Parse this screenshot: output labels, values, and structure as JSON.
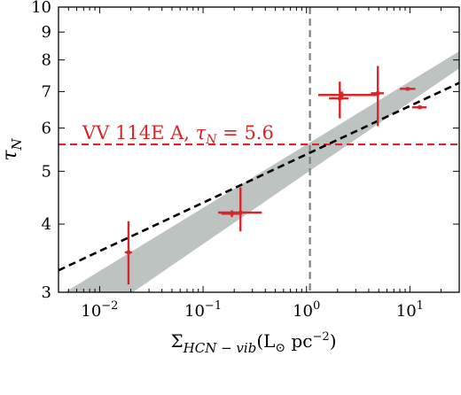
{
  "chart_data": {
    "type": "scatter",
    "xscale": "log",
    "yscale": "log",
    "xlim": [
      0.004,
      30
    ],
    "ylim": [
      3,
      10
    ],
    "x_ticks": [
      {
        "value": 0.01,
        "base": "10",
        "exp": "−2"
      },
      {
        "value": 0.1,
        "base": "10",
        "exp": "−1"
      },
      {
        "value": 1,
        "base": "10",
        "exp": "0"
      },
      {
        "value": 10,
        "base": "10",
        "exp": "1"
      }
    ],
    "y_ticks": [
      {
        "value": 3,
        "label": "3"
      },
      {
        "value": 4,
        "label": "4"
      },
      {
        "value": 5,
        "label": "5"
      },
      {
        "value": 6,
        "label": "6"
      },
      {
        "value": 7,
        "label": "7"
      },
      {
        "value": 8,
        "label": "8"
      },
      {
        "value": 9,
        "label": "9"
      },
      {
        "value": 10,
        "label": "10"
      }
    ],
    "xlabel": {
      "sigma": "Σ",
      "sub": "HCN − vib",
      "paren_open": "(L",
      "sun": "⊙",
      "unit": " pc",
      "exp": "−2",
      "paren_close": ")"
    },
    "ylabel": {
      "tau": "τ",
      "sub": "N"
    },
    "points": [
      {
        "x": 0.019,
        "y": 3.55,
        "xerr": [
          0.0015,
          0.0015
        ],
        "yerr": [
          0.45,
          0.5
        ]
      },
      {
        "x": 0.19,
        "y": 4.18,
        "xerr": [
          0.04,
          0.04
        ],
        "yerr": [
          0.06,
          0.06
        ]
      },
      {
        "x": 0.23,
        "y": 4.2,
        "xerr": [
          0.09,
          0.14
        ],
        "yerr": [
          0.32,
          0.47
        ]
      },
      {
        "x": 2.1,
        "y": 6.8,
        "xerr": [
          0.45,
          0.45
        ],
        "yerr": [
          0.55,
          0.5
        ]
      },
      {
        "x": 2.2,
        "y": 6.9,
        "xerr": [
          0.9,
          2.6
        ],
        "yerr": [
          0.1,
          0.1
        ]
      },
      {
        "x": 4.9,
        "y": 6.95,
        "xerr": [
          0.7,
          0.7
        ],
        "yerr": [
          0.9,
          0.85
        ]
      },
      {
        "x": 9.5,
        "y": 7.08,
        "xerr": [
          1.5,
          1.8
        ],
        "yerr": [
          0.05,
          0.05
        ]
      },
      {
        "x": 12.5,
        "y": 6.55,
        "xerr": [
          2,
          2
        ],
        "yerr": [
          0.05,
          0.05
        ]
      }
    ],
    "fit": {
      "style": "black dashed",
      "x0": 1,
      "y0": 5.37,
      "slope": 0.0887
    },
    "band": {
      "color": "#bcc3c0",
      "x_range": [
        0.004,
        30
      ],
      "upper_at_min": 2.95,
      "lower_at_min": 2.42,
      "upper_at_max": 8.3,
      "lower_at_max": 7.72
    },
    "vline": {
      "x": 1.08,
      "color": "#808080",
      "style": "dashed"
    },
    "hline": {
      "y": 5.6,
      "color": "#d62728",
      "style": "dashed"
    },
    "annotation": {
      "text": "VV 114E A, ",
      "tau": "τ",
      "sub": "N",
      "value": " = 5.6",
      "color": "#d62728"
    },
    "point_color": "#d62728"
  }
}
